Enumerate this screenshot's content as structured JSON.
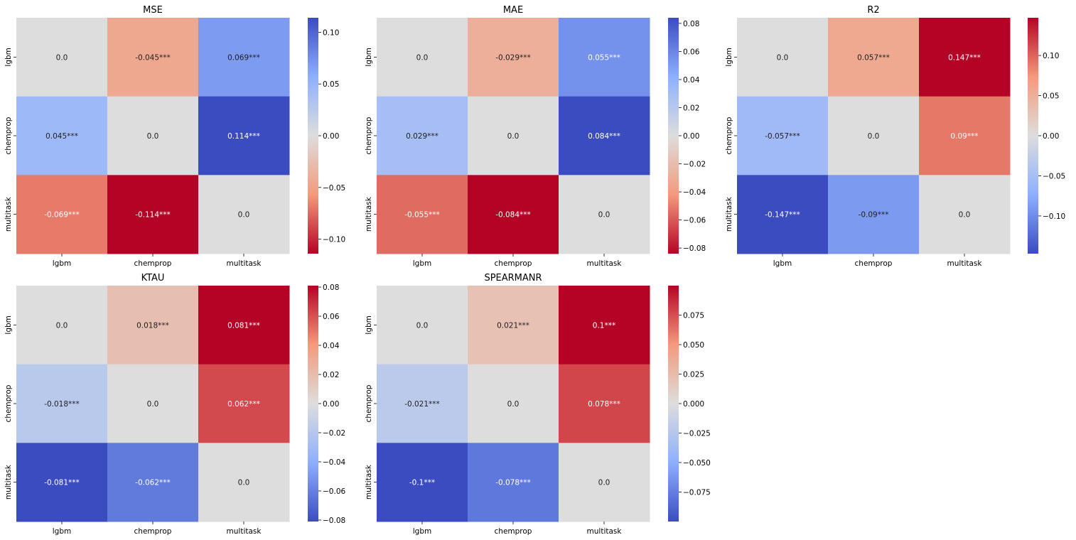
{
  "chart_data": [
    {
      "type": "heatmap",
      "title": "MSE",
      "x_categories": [
        "lgbm",
        "chemprop",
        "multitask"
      ],
      "y_categories": [
        "lgbm",
        "chemprop",
        "multitask"
      ],
      "values": [
        [
          0.0,
          -0.045,
          0.069
        ],
        [
          0.045,
          0.0,
          0.114
        ],
        [
          -0.069,
          -0.114,
          0.0
        ]
      ],
      "annotations": [
        [
          "0.0",
          "-0.045***",
          "0.069***"
        ],
        [
          "0.045***",
          "0.0",
          "0.114***"
        ],
        [
          "-0.069***",
          "-0.114***",
          "0.0"
        ]
      ],
      "colormap": "coolwarm_r",
      "vmin": -0.114,
      "vmax": 0.114,
      "colorbar_ticks": [
        0.1,
        0.05,
        0.0,
        -0.05,
        -0.1
      ],
      "colorbar_tick_labels": [
        "0.10",
        "0.05",
        "0.00",
        "−0.05",
        "−0.10"
      ]
    },
    {
      "type": "heatmap",
      "title": "MAE",
      "x_categories": [
        "lgbm",
        "chemprop",
        "multitask"
      ],
      "y_categories": [
        "lgbm",
        "chemprop",
        "multitask"
      ],
      "values": [
        [
          0.0,
          -0.029,
          0.055
        ],
        [
          0.029,
          0.0,
          0.084
        ],
        [
          -0.055,
          -0.084,
          0.0
        ]
      ],
      "annotations": [
        [
          "0.0",
          "-0.029***",
          "0.055***"
        ],
        [
          "0.029***",
          "0.0",
          "0.084***"
        ],
        [
          "-0.055***",
          "-0.084***",
          "0.0"
        ]
      ],
      "colormap": "coolwarm_r",
      "vmin": -0.084,
      "vmax": 0.084,
      "colorbar_ticks": [
        0.08,
        0.06,
        0.04,
        0.02,
        0.0,
        -0.02,
        -0.04,
        -0.06,
        -0.08
      ],
      "colorbar_tick_labels": [
        "0.08",
        "0.06",
        "0.04",
        "0.02",
        "0.00",
        "−0.02",
        "−0.04",
        "−0.06",
        "−0.08"
      ]
    },
    {
      "type": "heatmap",
      "title": "R2",
      "x_categories": [
        "lgbm",
        "chemprop",
        "multitask"
      ],
      "y_categories": [
        "lgbm",
        "chemprop",
        "multitask"
      ],
      "values": [
        [
          0.0,
          0.057,
          0.147
        ],
        [
          -0.057,
          0.0,
          0.09
        ],
        [
          -0.147,
          -0.09,
          0.0
        ]
      ],
      "annotations": [
        [
          "0.0",
          "0.057***",
          "0.147***"
        ],
        [
          "-0.057***",
          "0.0",
          "0.09***"
        ],
        [
          "-0.147***",
          "-0.09***",
          "0.0"
        ]
      ],
      "colormap": "coolwarm",
      "vmin": -0.147,
      "vmax": 0.147,
      "colorbar_ticks": [
        0.1,
        0.05,
        0.0,
        -0.05,
        -0.1
      ],
      "colorbar_tick_labels": [
        "0.10",
        "0.05",
        "0.00",
        "−0.05",
        "−0.10"
      ]
    },
    {
      "type": "heatmap",
      "title": "KTAU",
      "x_categories": [
        "lgbm",
        "chemprop",
        "multitask"
      ],
      "y_categories": [
        "lgbm",
        "chemprop",
        "multitask"
      ],
      "values": [
        [
          0.0,
          0.018,
          0.081
        ],
        [
          -0.018,
          0.0,
          0.062
        ],
        [
          -0.081,
          -0.062,
          0.0
        ]
      ],
      "annotations": [
        [
          "0.0",
          "0.018***",
          "0.081***"
        ],
        [
          "-0.018***",
          "0.0",
          "0.062***"
        ],
        [
          "-0.081***",
          "-0.062***",
          "0.0"
        ]
      ],
      "colormap": "coolwarm",
      "vmin": -0.081,
      "vmax": 0.081,
      "colorbar_ticks": [
        0.08,
        0.06,
        0.04,
        0.02,
        0.0,
        -0.02,
        -0.04,
        -0.06,
        -0.08
      ],
      "colorbar_tick_labels": [
        "0.08",
        "0.06",
        "0.04",
        "0.02",
        "0.00",
        "−0.02",
        "−0.04",
        "−0.06",
        "−0.08"
      ]
    },
    {
      "type": "heatmap",
      "title": "SPEARMANR",
      "x_categories": [
        "lgbm",
        "chemprop",
        "multitask"
      ],
      "y_categories": [
        "lgbm",
        "chemprop",
        "multitask"
      ],
      "values": [
        [
          0.0,
          0.021,
          0.1
        ],
        [
          -0.021,
          0.0,
          0.078
        ],
        [
          -0.1,
          -0.078,
          0.0
        ]
      ],
      "annotations": [
        [
          "0.0",
          "0.021***",
          "0.1***"
        ],
        [
          "-0.021***",
          "0.0",
          "0.078***"
        ],
        [
          "-0.1***",
          "-0.078***",
          "0.0"
        ]
      ],
      "colormap": "coolwarm",
      "vmin": -0.1,
      "vmax": 0.1,
      "colorbar_ticks": [
        0.075,
        0.05,
        0.025,
        0.0,
        -0.025,
        -0.05,
        -0.075
      ],
      "colorbar_tick_labels": [
        "0.075",
        "0.050",
        "0.025",
        "0.000",
        "−0.025",
        "−0.050",
        "−0.075"
      ]
    }
  ]
}
